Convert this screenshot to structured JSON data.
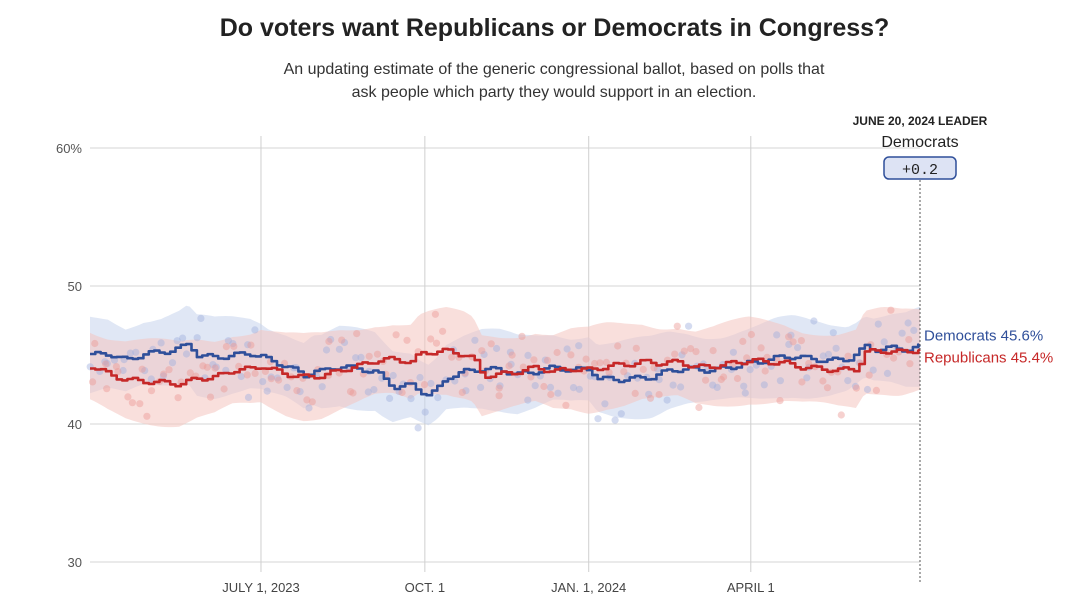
{
  "title": "Do voters want Republicans or Democrats in Congress?",
  "subtitle": "An updating estimate of the generic congressional ballot, based on polls that ask people which party they would support in an election.",
  "leader": {
    "heading": "JUNE 20, 2024 LEADER",
    "party": "Democrats",
    "margin": "+0.2"
  },
  "colors": {
    "democrats": "#2f4f9a",
    "republicans": "#c62828",
    "dem_band": "#c7d3ec",
    "rep_band": "#f4c4c0",
    "dem_dot": "#9fb0dd",
    "rep_dot": "#ec9a94",
    "badge_fill": "#dde3f4",
    "badge_stroke": "#2f4f9a"
  },
  "chart_data": {
    "type": "line",
    "title": "Do voters want Republicans or Democrats in Congress?",
    "xlabel": "",
    "ylabel": "",
    "ylim": [
      30,
      60
    ],
    "xlim_days": [
      0,
      466
    ],
    "y_ticks": [
      {
        "value": 60,
        "label": "60%"
      },
      {
        "value": 50,
        "label": "50"
      },
      {
        "value": 40,
        "label": "40"
      },
      {
        "value": 30,
        "label": "30"
      }
    ],
    "x_ticks": [
      {
        "day": 96,
        "label": "JULY 1, 2023"
      },
      {
        "day": 188,
        "label": "OCT. 1"
      },
      {
        "day": 280,
        "label": "JAN. 1, 2024"
      },
      {
        "day": 371,
        "label": "APRIL 1"
      }
    ],
    "series": [
      {
        "name": "Democrats",
        "end_label": "Democrats 45.6%",
        "band_width": 2.6,
        "points": [
          [
            0,
            45.0
          ],
          [
            10,
            45.1
          ],
          [
            20,
            44.6
          ],
          [
            30,
            45.1
          ],
          [
            40,
            45.2
          ],
          [
            50,
            45.5
          ],
          [
            55,
            45.8
          ],
          [
            60,
            45.0
          ],
          [
            70,
            44.8
          ],
          [
            80,
            45.0
          ],
          [
            90,
            45.1
          ],
          [
            96,
            44.9
          ],
          [
            100,
            44.6
          ],
          [
            110,
            44.2
          ],
          [
            120,
            43.5
          ],
          [
            125,
            43.9
          ],
          [
            130,
            43.8
          ],
          [
            140,
            44.2
          ],
          [
            150,
            44.0
          ],
          [
            160,
            43.8
          ],
          [
            165,
            43.2
          ],
          [
            170,
            42.7
          ],
          [
            180,
            42.8
          ],
          [
            185,
            42.4
          ],
          [
            190,
            42.1
          ],
          [
            195,
            42.6
          ],
          [
            200,
            43.4
          ],
          [
            210,
            43.8
          ],
          [
            220,
            44.0
          ],
          [
            230,
            43.9
          ],
          [
            240,
            43.6
          ],
          [
            250,
            43.8
          ],
          [
            260,
            44.1
          ],
          [
            270,
            43.9
          ],
          [
            280,
            44.0
          ],
          [
            285,
            43.3
          ],
          [
            295,
            43.2
          ],
          [
            305,
            43.3
          ],
          [
            315,
            43.4
          ],
          [
            325,
            43.9
          ],
          [
            335,
            44.0
          ],
          [
            345,
            43.9
          ],
          [
            355,
            44.0
          ],
          [
            365,
            44.3
          ],
          [
            375,
            44.5
          ],
          [
            385,
            44.8
          ],
          [
            395,
            44.9
          ],
          [
            405,
            44.7
          ],
          [
            415,
            44.6
          ],
          [
            425,
            44.7
          ],
          [
            430,
            45.1
          ],
          [
            435,
            45.6
          ],
          [
            440,
            45.4
          ],
          [
            450,
            45.5
          ],
          [
            458,
            45.4
          ],
          [
            466,
            45.6
          ]
        ]
      },
      {
        "name": "Republicans",
        "end_label": "Republicans 45.4%",
        "band_width": 2.8,
        "points": [
          [
            0,
            44.2
          ],
          [
            10,
            43.6
          ],
          [
            20,
            43.2
          ],
          [
            30,
            43.1
          ],
          [
            40,
            43.0
          ],
          [
            50,
            42.9
          ],
          [
            60,
            43.3
          ],
          [
            70,
            43.4
          ],
          [
            80,
            43.9
          ],
          [
            90,
            44.0
          ],
          [
            96,
            44.2
          ],
          [
            100,
            44.0
          ],
          [
            110,
            43.6
          ],
          [
            120,
            43.4
          ],
          [
            130,
            43.5
          ],
          [
            140,
            43.9
          ],
          [
            150,
            44.2
          ],
          [
            160,
            44.6
          ],
          [
            170,
            44.7
          ],
          [
            180,
            44.5
          ],
          [
            185,
            45.1
          ],
          [
            190,
            45.2
          ],
          [
            200,
            45.3
          ],
          [
            210,
            45.0
          ],
          [
            215,
            44.7
          ],
          [
            220,
            43.5
          ],
          [
            230,
            43.6
          ],
          [
            240,
            43.8
          ],
          [
            250,
            44.1
          ],
          [
            260,
            43.8
          ],
          [
            270,
            44.0
          ],
          [
            280,
            43.9
          ],
          [
            290,
            44.2
          ],
          [
            300,
            44.3
          ],
          [
            310,
            44.5
          ],
          [
            320,
            44.4
          ],
          [
            330,
            44.5
          ],
          [
            340,
            44.1
          ],
          [
            350,
            44.2
          ],
          [
            360,
            44.4
          ],
          [
            370,
            44.6
          ],
          [
            380,
            44.5
          ],
          [
            390,
            44.4
          ],
          [
            400,
            44.1
          ],
          [
            410,
            44.0
          ],
          [
            420,
            43.9
          ],
          [
            430,
            44.0
          ],
          [
            435,
            45.2
          ],
          [
            445,
            45.3
          ],
          [
            455,
            45.2
          ],
          [
            466,
            45.4
          ]
        ]
      }
    ]
  }
}
